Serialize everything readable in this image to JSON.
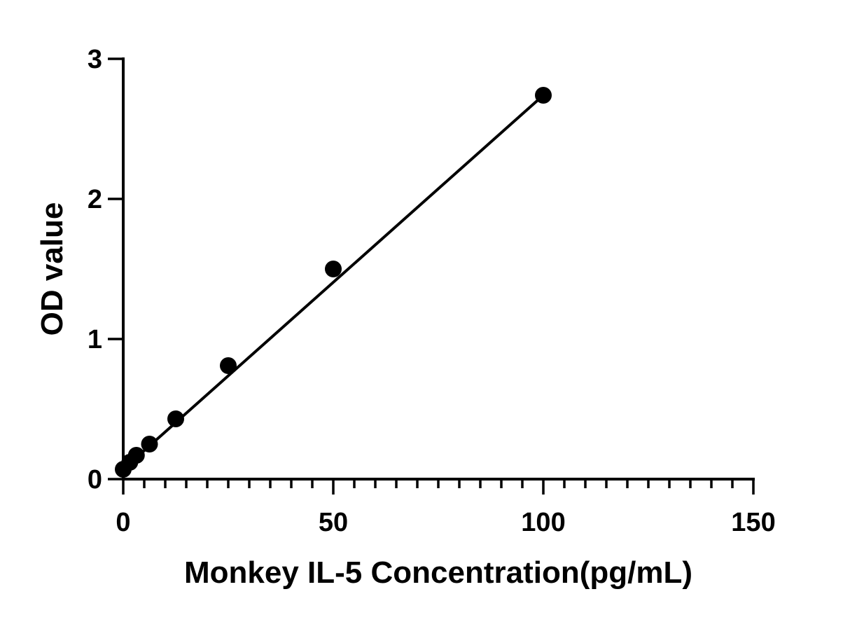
{
  "chart_data": {
    "type": "scatter",
    "xlabel": "Monkey IL-5 Concentration(pg/mL)",
    "ylabel": "OD value",
    "xlim": [
      0,
      150
    ],
    "ylim": [
      0,
      3
    ],
    "x_ticks": [
      "0",
      "50",
      "100",
      "150"
    ],
    "y_ticks": [
      "0",
      "1",
      "2",
      "3"
    ],
    "x_minor_step": 5,
    "grid": false,
    "series": [
      {
        "points": [
          {
            "x": 0,
            "y": 0.07
          },
          {
            "x": 1.56,
            "y": 0.12
          },
          {
            "x": 3.13,
            "y": 0.17
          },
          {
            "x": 6.25,
            "y": 0.25
          },
          {
            "x": 12.5,
            "y": 0.43
          },
          {
            "x": 25,
            "y": 0.81
          },
          {
            "x": 50,
            "y": 1.5
          },
          {
            "x": 100,
            "y": 2.74
          }
        ],
        "fit": {
          "type": "linear",
          "x_range": [
            0,
            100
          ],
          "y_range": [
            0.07,
            2.74
          ]
        }
      }
    ],
    "colors": {
      "marker": "#000000",
      "line": "#000000",
      "axis": "#000000"
    }
  }
}
